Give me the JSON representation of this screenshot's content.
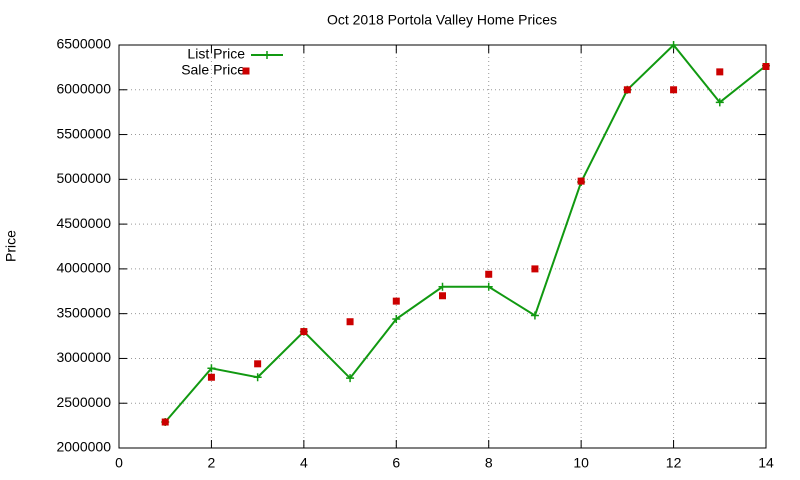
{
  "chart_data": {
    "type": "line",
    "title": "Oct 2018 Portola Valley Home Prices",
    "y_label": "Price",
    "x": [
      1,
      2,
      3,
      4,
      5,
      6,
      7,
      8,
      9,
      10,
      11,
      12,
      13,
      14
    ],
    "series": [
      {
        "name": "List Price",
        "color": "#119911",
        "line": true,
        "marker": "plus",
        "values": [
          2290000,
          2890000,
          2790000,
          3300000,
          2780000,
          3440000,
          3800000,
          3800000,
          3480000,
          4970000,
          6000000,
          6500000,
          5860000,
          6270000
        ]
      },
      {
        "name": "Sale Price",
        "color": "#cc0000",
        "line": false,
        "marker": "square",
        "values": [
          2290000,
          2790000,
          2940000,
          3300000,
          3410000,
          3640000,
          3700000,
          3940000,
          4000000,
          4980000,
          6000000,
          6000000,
          6200000,
          6260000
        ]
      }
    ],
    "xlim": [
      0,
      14
    ],
    "xticks": [
      0,
      2,
      4,
      6,
      8,
      10,
      12,
      14
    ],
    "ylim": [
      2000000,
      6500000
    ],
    "yticks": [
      2000000,
      2500000,
      3000000,
      3500000,
      4000000,
      4500000,
      5000000,
      5500000,
      6000000,
      6500000
    ],
    "grid": true,
    "legend": "top-left"
  }
}
